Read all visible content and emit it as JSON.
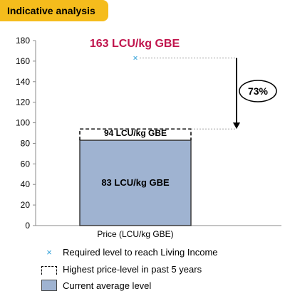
{
  "badge": {
    "label": "Indicative analysis"
  },
  "chart_data": {
    "type": "bar",
    "categories": [
      "Price (LCU/kg GBE)"
    ],
    "xlabel": "Price (LCU/kg GBE)",
    "ylim": [
      0,
      180
    ],
    "yticks": [
      0,
      20,
      40,
      60,
      80,
      100,
      120,
      140,
      160,
      180
    ],
    "grid": false,
    "series": [
      {
        "name": "Current average level",
        "values": [
          83
        ],
        "color": "#9fb3d1"
      },
      {
        "name": "Highest price-level in past 5 years",
        "values": [
          94
        ]
      },
      {
        "name": "Required level to reach Living Income",
        "values": [
          163
        ],
        "color": "#2e9fd8"
      }
    ],
    "labels": {
      "required": "163  LCU/kg GBE",
      "highest": "94 LCU/kg GBE",
      "current": "83  LCU/kg GBE",
      "gap": "73%"
    },
    "colors": {
      "required_label": "#c0144c",
      "bar_fill": "#9fb3d1",
      "marker": "#2e9fd8"
    }
  },
  "legend": {
    "required": "Required level to reach Living Income",
    "highest": "Highest price-level in past 5 years",
    "current": "Current average level"
  }
}
